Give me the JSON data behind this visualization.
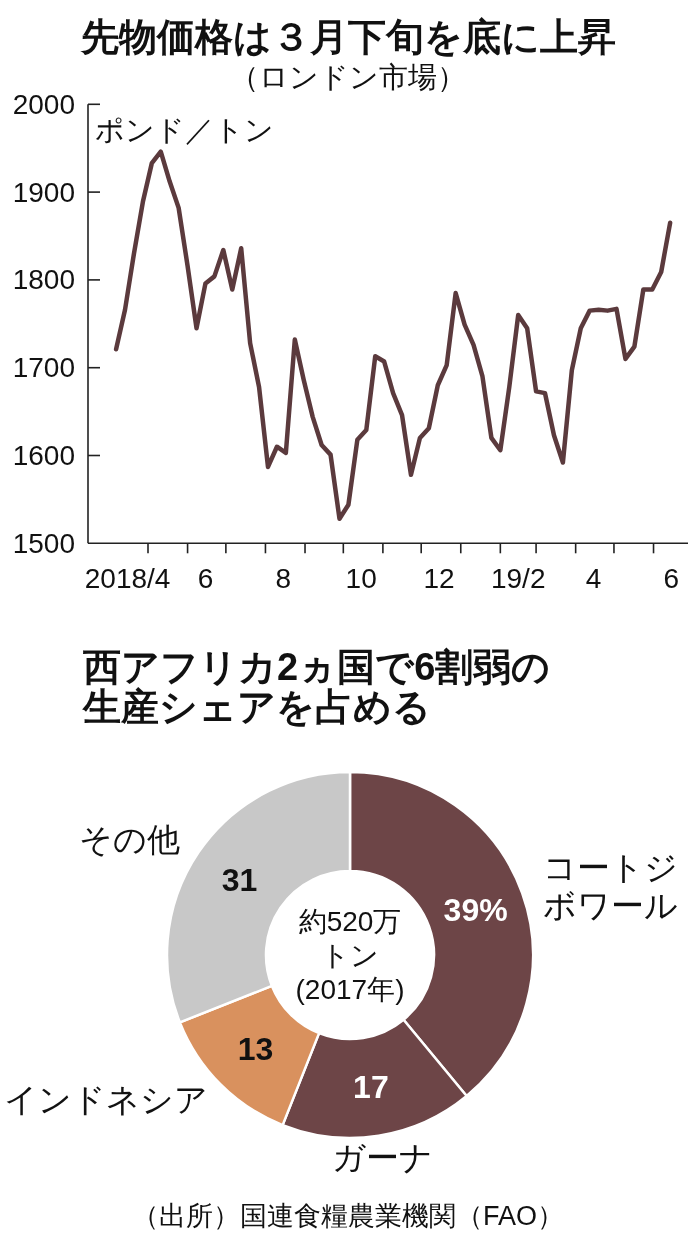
{
  "chart_data": [
    {
      "type": "line",
      "title": "先物価格は３月下旬を底に上昇",
      "subtitle": "（ロンドン市場）",
      "ylabel": "ポンド／トン",
      "x": [
        "2018-04-06",
        "2018-04-13",
        "2018-04-20",
        "2018-04-27",
        "2018-05-04",
        "2018-05-11",
        "2018-05-18",
        "2018-05-25",
        "2018-06-01",
        "2018-06-08",
        "2018-06-15",
        "2018-06-22",
        "2018-06-29",
        "2018-07-06",
        "2018-07-13",
        "2018-07-20",
        "2018-07-27",
        "2018-08-03",
        "2018-08-10",
        "2018-08-17",
        "2018-08-24",
        "2018-08-31",
        "2018-09-07",
        "2018-09-14",
        "2018-09-21",
        "2018-09-28",
        "2018-10-05",
        "2018-10-12",
        "2018-10-19",
        "2018-10-26",
        "2018-11-02",
        "2018-11-09",
        "2018-11-16",
        "2018-11-23",
        "2018-11-30",
        "2018-12-07",
        "2018-12-14",
        "2018-12-21",
        "2018-12-28",
        "2019-01-04",
        "2019-01-11",
        "2019-01-18",
        "2019-01-25",
        "2019-02-01",
        "2019-02-08",
        "2019-02-15",
        "2019-02-22",
        "2019-03-01",
        "2019-03-08",
        "2019-03-15",
        "2019-03-22",
        "2019-03-29",
        "2019-04-05",
        "2019-04-12",
        "2019-04-19",
        "2019-04-26",
        "2019-05-03",
        "2019-05-10",
        "2019-05-17",
        "2019-05-24",
        "2019-05-31",
        "2019-06-07",
        "2019-06-14"
      ],
      "series": [
        {
          "color": "#5b3a3d",
          "values": [
            1721,
            1766,
            1830,
            1889,
            1933,
            1946,
            1912,
            1882,
            1816,
            1745,
            1796,
            1804,
            1834,
            1789,
            1836,
            1728,
            1678,
            1587,
            1610,
            1603,
            1732,
            1686,
            1644,
            1612,
            1601,
            1528,
            1544,
            1618,
            1629,
            1713,
            1707,
            1671,
            1646,
            1578,
            1620,
            1631,
            1680,
            1703,
            1785,
            1749,
            1726,
            1690,
            1620,
            1606,
            1678,
            1760,
            1745,
            1673,
            1671,
            1623,
            1592,
            1697,
            1745,
            1765,
            1766,
            1765,
            1767,
            1710,
            1724,
            1789,
            1789,
            1809,
            1865
          ]
        }
      ],
      "xlim": [
        "2018-03-15",
        "2019-06-28"
      ],
      "xticks": [
        {
          "value": "2018-04-15",
          "label": "2018/4"
        },
        {
          "value": "2018-05-01",
          "label": null
        },
        {
          "value": "2018-06-01",
          "label": null
        },
        {
          "value": "2018-06-15",
          "label": "6"
        },
        {
          "value": "2018-07-01",
          "label": null
        },
        {
          "value": "2018-08-01",
          "label": null
        },
        {
          "value": "2018-08-15",
          "label": "8"
        },
        {
          "value": "2018-09-01",
          "label": null
        },
        {
          "value": "2018-10-01",
          "label": null
        },
        {
          "value": "2018-10-15",
          "label": "10"
        },
        {
          "value": "2018-11-01",
          "label": null
        },
        {
          "value": "2018-12-01",
          "label": null
        },
        {
          "value": "2018-12-15",
          "label": "12"
        },
        {
          "value": "2019-01-01",
          "label": null
        },
        {
          "value": "2019-02-01",
          "label": null
        },
        {
          "value": "2019-02-15",
          "label": "19/2"
        },
        {
          "value": "2019-03-01",
          "label": null
        },
        {
          "value": "2019-04-01",
          "label": null
        },
        {
          "value": "2019-04-15",
          "label": "4"
        },
        {
          "value": "2019-05-01",
          "label": null
        },
        {
          "value": "2019-06-01",
          "label": null
        },
        {
          "value": "2019-06-15",
          "label": "6"
        }
      ],
      "ylim": [
        1500,
        2000
      ],
      "yticks": [
        1500,
        1600,
        1700,
        1800,
        1900,
        2000
      ]
    },
    {
      "type": "donut",
      "title": "西アフリカ2ヵ国で6割弱の生産シェアを占める",
      "categories": [
        "コートジボワール",
        "ガーナ",
        "インドネシア",
        "その他"
      ],
      "values": [
        39,
        17,
        13,
        31
      ],
      "colors": [
        "#6d4547",
        "#6d4547",
        "#d9915e",
        "#c8c8c8"
      ],
      "value_labels": [
        "39%",
        "17",
        "13",
        "31"
      ],
      "annotations": [
        "約520万トン(2017年)",
        "（出所）国連食糧農業機関（FAO）"
      ]
    }
  ]
}
